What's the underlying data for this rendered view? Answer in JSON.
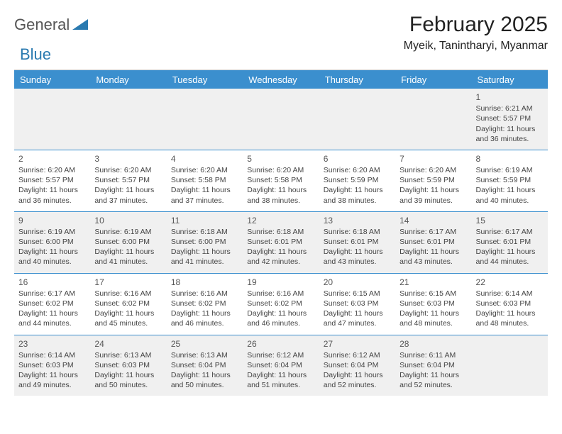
{
  "logo": {
    "part1": "General",
    "part2": "Blue"
  },
  "title": "February 2025",
  "location": "Myeik, Tanintharyi, Myanmar",
  "daysOfWeek": [
    "Sunday",
    "Monday",
    "Tuesday",
    "Wednesday",
    "Thursday",
    "Friday",
    "Saturday"
  ],
  "colors": {
    "headerBg": "#3b8fce",
    "accent": "#2a7ab0",
    "ruleGray": "#cfcfcf",
    "rowAlt": "#f0f0f0"
  },
  "firstDayColumn": 6,
  "daysInMonth": 28,
  "days": [
    {
      "n": 1,
      "sunrise": "6:21 AM",
      "sunset": "5:57 PM",
      "daylight": "11 hours and 36 minutes."
    },
    {
      "n": 2,
      "sunrise": "6:20 AM",
      "sunset": "5:57 PM",
      "daylight": "11 hours and 36 minutes."
    },
    {
      "n": 3,
      "sunrise": "6:20 AM",
      "sunset": "5:57 PM",
      "daylight": "11 hours and 37 minutes."
    },
    {
      "n": 4,
      "sunrise": "6:20 AM",
      "sunset": "5:58 PM",
      "daylight": "11 hours and 37 minutes."
    },
    {
      "n": 5,
      "sunrise": "6:20 AM",
      "sunset": "5:58 PM",
      "daylight": "11 hours and 38 minutes."
    },
    {
      "n": 6,
      "sunrise": "6:20 AM",
      "sunset": "5:59 PM",
      "daylight": "11 hours and 38 minutes."
    },
    {
      "n": 7,
      "sunrise": "6:20 AM",
      "sunset": "5:59 PM",
      "daylight": "11 hours and 39 minutes."
    },
    {
      "n": 8,
      "sunrise": "6:19 AM",
      "sunset": "5:59 PM",
      "daylight": "11 hours and 40 minutes."
    },
    {
      "n": 9,
      "sunrise": "6:19 AM",
      "sunset": "6:00 PM",
      "daylight": "11 hours and 40 minutes."
    },
    {
      "n": 10,
      "sunrise": "6:19 AM",
      "sunset": "6:00 PM",
      "daylight": "11 hours and 41 minutes."
    },
    {
      "n": 11,
      "sunrise": "6:18 AM",
      "sunset": "6:00 PM",
      "daylight": "11 hours and 41 minutes."
    },
    {
      "n": 12,
      "sunrise": "6:18 AM",
      "sunset": "6:01 PM",
      "daylight": "11 hours and 42 minutes."
    },
    {
      "n": 13,
      "sunrise": "6:18 AM",
      "sunset": "6:01 PM",
      "daylight": "11 hours and 43 minutes."
    },
    {
      "n": 14,
      "sunrise": "6:17 AM",
      "sunset": "6:01 PM",
      "daylight": "11 hours and 43 minutes."
    },
    {
      "n": 15,
      "sunrise": "6:17 AM",
      "sunset": "6:01 PM",
      "daylight": "11 hours and 44 minutes."
    },
    {
      "n": 16,
      "sunrise": "6:17 AM",
      "sunset": "6:02 PM",
      "daylight": "11 hours and 44 minutes."
    },
    {
      "n": 17,
      "sunrise": "6:16 AM",
      "sunset": "6:02 PM",
      "daylight": "11 hours and 45 minutes."
    },
    {
      "n": 18,
      "sunrise": "6:16 AM",
      "sunset": "6:02 PM",
      "daylight": "11 hours and 46 minutes."
    },
    {
      "n": 19,
      "sunrise": "6:16 AM",
      "sunset": "6:02 PM",
      "daylight": "11 hours and 46 minutes."
    },
    {
      "n": 20,
      "sunrise": "6:15 AM",
      "sunset": "6:03 PM",
      "daylight": "11 hours and 47 minutes."
    },
    {
      "n": 21,
      "sunrise": "6:15 AM",
      "sunset": "6:03 PM",
      "daylight": "11 hours and 48 minutes."
    },
    {
      "n": 22,
      "sunrise": "6:14 AM",
      "sunset": "6:03 PM",
      "daylight": "11 hours and 48 minutes."
    },
    {
      "n": 23,
      "sunrise": "6:14 AM",
      "sunset": "6:03 PM",
      "daylight": "11 hours and 49 minutes."
    },
    {
      "n": 24,
      "sunrise": "6:13 AM",
      "sunset": "6:03 PM",
      "daylight": "11 hours and 50 minutes."
    },
    {
      "n": 25,
      "sunrise": "6:13 AM",
      "sunset": "6:04 PM",
      "daylight": "11 hours and 50 minutes."
    },
    {
      "n": 26,
      "sunrise": "6:12 AM",
      "sunset": "6:04 PM",
      "daylight": "11 hours and 51 minutes."
    },
    {
      "n": 27,
      "sunrise": "6:12 AM",
      "sunset": "6:04 PM",
      "daylight": "11 hours and 52 minutes."
    },
    {
      "n": 28,
      "sunrise": "6:11 AM",
      "sunset": "6:04 PM",
      "daylight": "11 hours and 52 minutes."
    }
  ],
  "labels": {
    "sunrise": "Sunrise:",
    "sunset": "Sunset:",
    "daylight": "Daylight:"
  }
}
